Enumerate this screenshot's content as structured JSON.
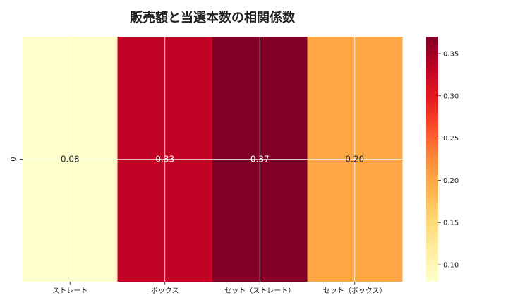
{
  "chart_data": {
    "type": "heatmap",
    "title": "販売額と当選本数の相関係数",
    "x_categories": [
      "ストレート",
      "ボックス",
      "セット（ストレート）",
      "セット（ボックス）"
    ],
    "y_categories": [
      "0"
    ],
    "values": [
      [
        0.08,
        0.33,
        0.37,
        0.2
      ]
    ],
    "value_labels": [
      "0.08",
      "0.33",
      "0.37",
      "0.20"
    ],
    "colormap": "YlOrRd",
    "colorbar": {
      "vmin": 0.08,
      "vmax": 0.37,
      "ticks": [
        0.1,
        0.15,
        0.2,
        0.25,
        0.3,
        0.35
      ],
      "tick_labels": [
        "0.10",
        "0.15",
        "0.20",
        "0.25",
        "0.30",
        "0.35"
      ]
    },
    "grid": true
  }
}
